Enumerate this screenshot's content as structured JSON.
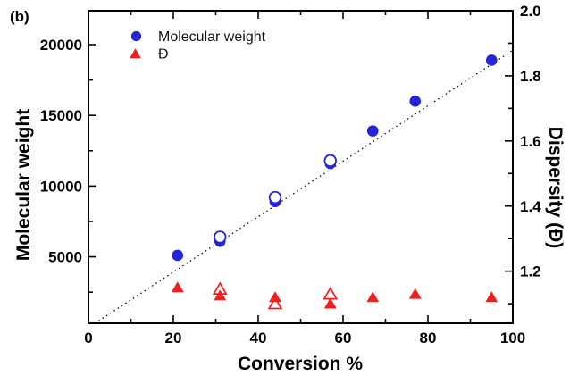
{
  "chart_data": {
    "type": "scatter",
    "panel_label": "(b)",
    "title": "",
    "xlabel": "Conversion %",
    "ylabel_left": "Molecular weight",
    "ylabel_right": "Dispersity (Đ)",
    "grid": false,
    "background": "#ffffff",
    "axis_color": "#000000",
    "xlim": [
      0,
      100
    ],
    "x_major_ticks": [
      0,
      20,
      40,
      60,
      80,
      100
    ],
    "x_minor_ticks": [
      10,
      30,
      50,
      70,
      90
    ],
    "ylim_left": [
      300,
      22400
    ],
    "y_left_major_ticks": [
      5000,
      10000,
      15000,
      20000
    ],
    "y_left_minor_ticks": [
      2500,
      7500,
      12500,
      17500
    ],
    "ylim_right": [
      1.04,
      2.0
    ],
    "y_right_major_ticks": [
      1.2,
      1.4,
      1.6,
      1.8,
      2.0
    ],
    "y_right_minor_ticks": [
      1.1,
      1.3,
      1.5,
      1.7,
      1.9
    ],
    "series": [
      {
        "name": "Molecular weight (filled circles)",
        "axis": "left",
        "marker": "circle",
        "fill": "filled",
        "color": "#2424db",
        "points": [
          [
            21,
            5100
          ],
          [
            31,
            6100
          ],
          [
            44,
            8900
          ],
          [
            57,
            11600
          ],
          [
            67,
            13900
          ],
          [
            77,
            16000
          ],
          [
            95,
            18900
          ]
        ]
      },
      {
        "name": "Molecular weight (open circles)",
        "axis": "left",
        "marker": "circle",
        "fill": "open",
        "color": "#2424db",
        "points": [
          [
            31,
            6400
          ],
          [
            44,
            9200
          ],
          [
            57,
            11800
          ]
        ]
      },
      {
        "name": "Dispersity (open triangles)",
        "axis": "right",
        "marker": "triangle",
        "fill": "open",
        "color": "#f21d1d",
        "points": [
          [
            31,
            1.145
          ],
          [
            44,
            1.1
          ],
          [
            57,
            1.13
          ]
        ]
      },
      {
        "name": "Dispersity (filled triangles)",
        "axis": "right",
        "marker": "triangle",
        "fill": "filled",
        "color": "#f21d1d",
        "points": [
          [
            21,
            1.15
          ],
          [
            31,
            1.125
          ],
          [
            44,
            1.12
          ],
          [
            57,
            1.1
          ],
          [
            67,
            1.12
          ],
          [
            77,
            1.13
          ],
          [
            95,
            1.12
          ]
        ]
      }
    ],
    "trendline": {
      "name": "theoretical molecular weight line",
      "style": "dotted",
      "color": "#1a1a1a",
      "axis": "left",
      "from": [
        1.5,
        290
      ],
      "to": [
        100,
        19600
      ]
    },
    "legend": {
      "position": "top-left-inside",
      "entries": [
        {
          "label": "Molecular weight",
          "marker": "circle",
          "color": "#2424db"
        },
        {
          "label": "Đ",
          "marker": "triangle",
          "color": "#f21d1d"
        }
      ]
    }
  }
}
